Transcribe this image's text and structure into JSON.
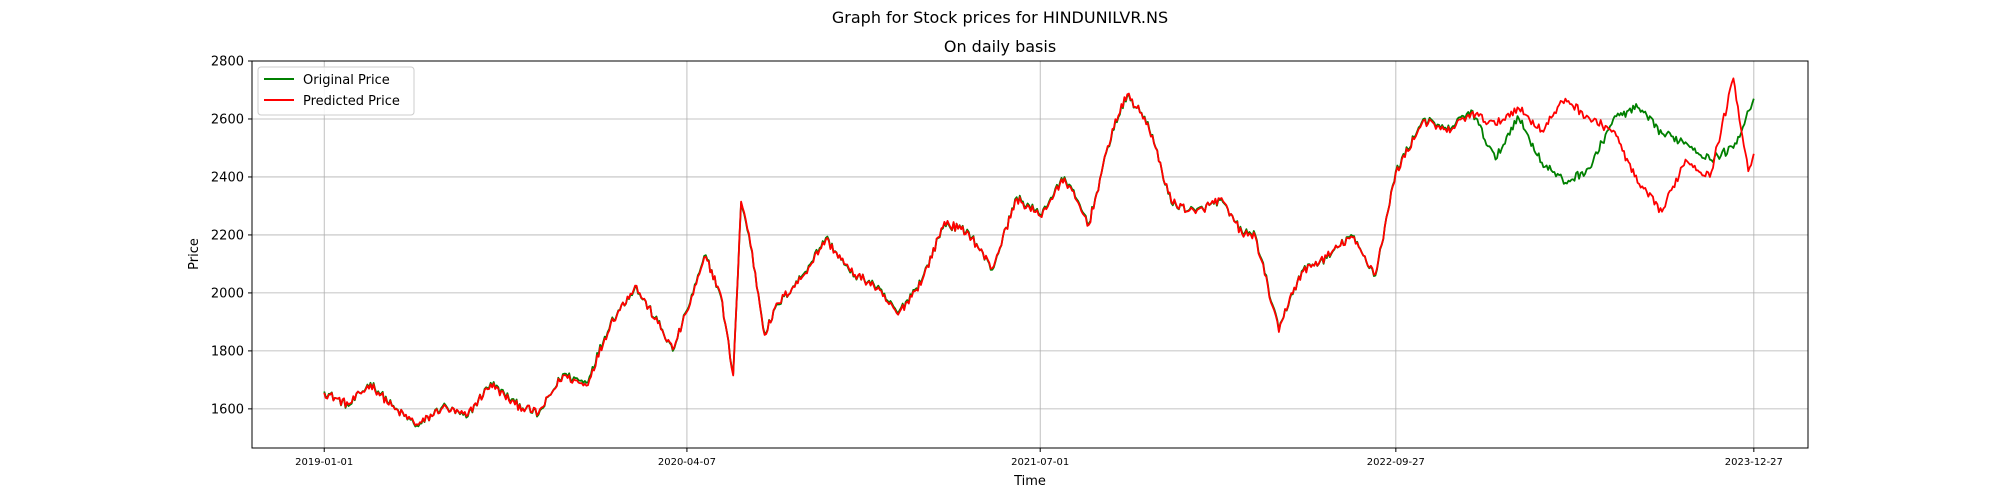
{
  "chart_data": {
    "type": "line",
    "suptitle": "Graph for Stock prices for HINDUNILVR.NS",
    "title": "On daily basis",
    "xlabel": "Time",
    "ylabel": "Price",
    "x_ticks": [
      "2019-01-01",
      "2020-04-07",
      "2021-07-01",
      "2022-09-27",
      "2023-12-27"
    ],
    "x_range": [
      "2018-10-01",
      "2024-03-05"
    ],
    "ylim": [
      1465,
      2800
    ],
    "y_ticks": [
      1600,
      1800,
      2000,
      2200,
      2400,
      2600,
      2800
    ],
    "grid": true,
    "legend_position": "upper left",
    "series": [
      {
        "name": "Original Price",
        "color": "#008000",
        "points": [
          [
            "2019-01-01",
            1660
          ],
          [
            "2019-02-01",
            1610
          ],
          [
            "2019-03-01",
            1690
          ],
          [
            "2019-04-01",
            1600
          ],
          [
            "2019-05-01",
            1540
          ],
          [
            "2019-06-01",
            1610
          ],
          [
            "2019-07-01",
            1570
          ],
          [
            "2019-08-01",
            1690
          ],
          [
            "2019-09-01",
            1620
          ],
          [
            "2019-10-01",
            1580
          ],
          [
            "2019-11-01",
            1720
          ],
          [
            "2019-12-01",
            1690
          ],
          [
            "2020-01-01",
            1900
          ],
          [
            "2020-02-01",
            2020
          ],
          [
            "2020-03-01",
            1900
          ],
          [
            "2020-03-20",
            1800
          ],
          [
            "2020-04-07",
            1940
          ],
          [
            "2020-05-01",
            2130
          ],
          [
            "2020-05-20",
            1990
          ],
          [
            "2020-06-05",
            1720
          ],
          [
            "2020-06-15",
            2310
          ],
          [
            "2020-06-25",
            2200
          ],
          [
            "2020-07-15",
            1860
          ],
          [
            "2020-08-01",
            1960
          ],
          [
            "2020-09-01",
            2060
          ],
          [
            "2020-10-01",
            2190
          ],
          [
            "2020-11-01",
            2070
          ],
          [
            "2020-12-01",
            2030
          ],
          [
            "2021-01-01",
            1930
          ],
          [
            "2021-02-01",
            2050
          ],
          [
            "2021-03-01",
            2240
          ],
          [
            "2021-04-01",
            2210
          ],
          [
            "2021-05-01",
            2080
          ],
          [
            "2021-06-01",
            2330
          ],
          [
            "2021-07-01",
            2270
          ],
          [
            "2021-08-01",
            2400
          ],
          [
            "2021-09-01",
            2240
          ],
          [
            "2021-10-01",
            2560
          ],
          [
            "2021-10-20",
            2680
          ],
          [
            "2021-11-15",
            2590
          ],
          [
            "2021-12-15",
            2310
          ],
          [
            "2022-01-15",
            2280
          ],
          [
            "2022-02-15",
            2320
          ],
          [
            "2022-03-15",
            2210
          ],
          [
            "2022-04-01",
            2200
          ],
          [
            "2022-05-01",
            1870
          ],
          [
            "2022-05-15",
            1980
          ],
          [
            "2022-06-01",
            2080
          ],
          [
            "2022-07-01",
            2120
          ],
          [
            "2022-08-01",
            2200
          ],
          [
            "2022-09-01",
            2060
          ],
          [
            "2022-09-27",
            2420
          ],
          [
            "2022-11-01",
            2600
          ],
          [
            "2022-12-01",
            2560
          ],
          [
            "2023-01-01",
            2630
          ],
          [
            "2023-02-01",
            2460
          ],
          [
            "2023-03-01",
            2610
          ],
          [
            "2023-04-01",
            2450
          ],
          [
            "2023-05-01",
            2380
          ],
          [
            "2023-06-01",
            2430
          ],
          [
            "2023-07-01",
            2600
          ],
          [
            "2023-08-01",
            2640
          ],
          [
            "2023-09-01",
            2550
          ],
          [
            "2023-10-01",
            2520
          ],
          [
            "2023-11-01",
            2460
          ],
          [
            "2023-12-01",
            2500
          ],
          [
            "2023-12-27",
            2670
          ]
        ]
      },
      {
        "name": "Predicted Price",
        "color": "#ff0000",
        "points": [
          [
            "2019-01-01",
            1655
          ],
          [
            "2019-02-01",
            1615
          ],
          [
            "2019-03-01",
            1685
          ],
          [
            "2019-04-01",
            1598
          ],
          [
            "2019-05-01",
            1545
          ],
          [
            "2019-06-01",
            1605
          ],
          [
            "2019-07-01",
            1575
          ],
          [
            "2019-08-01",
            1685
          ],
          [
            "2019-09-01",
            1615
          ],
          [
            "2019-10-01",
            1585
          ],
          [
            "2019-11-01",
            1715
          ],
          [
            "2019-12-01",
            1680
          ],
          [
            "2020-01-01",
            1895
          ],
          [
            "2020-02-01",
            2025
          ],
          [
            "2020-03-01",
            1895
          ],
          [
            "2020-03-20",
            1805
          ],
          [
            "2020-04-07",
            1935
          ],
          [
            "2020-05-01",
            2125
          ],
          [
            "2020-05-20",
            1995
          ],
          [
            "2020-06-05",
            1715
          ],
          [
            "2020-06-15",
            2315
          ],
          [
            "2020-06-25",
            2205
          ],
          [
            "2020-07-15",
            1855
          ],
          [
            "2020-08-01",
            1965
          ],
          [
            "2020-09-01",
            2055
          ],
          [
            "2020-10-01",
            2185
          ],
          [
            "2020-11-01",
            2075
          ],
          [
            "2020-12-01",
            2025
          ],
          [
            "2021-01-01",
            1925
          ],
          [
            "2021-02-01",
            2045
          ],
          [
            "2021-03-01",
            2245
          ],
          [
            "2021-04-01",
            2205
          ],
          [
            "2021-05-01",
            2085
          ],
          [
            "2021-06-01",
            2325
          ],
          [
            "2021-07-01",
            2265
          ],
          [
            "2021-08-01",
            2395
          ],
          [
            "2021-09-01",
            2235
          ],
          [
            "2021-10-01",
            2565
          ],
          [
            "2021-10-20",
            2685
          ],
          [
            "2021-11-15",
            2585
          ],
          [
            "2021-12-15",
            2315
          ],
          [
            "2022-01-15",
            2275
          ],
          [
            "2022-02-15",
            2325
          ],
          [
            "2022-03-15",
            2205
          ],
          [
            "2022-04-01",
            2195
          ],
          [
            "2022-05-01",
            1865
          ],
          [
            "2022-05-15",
            1985
          ],
          [
            "2022-06-01",
            2075
          ],
          [
            "2022-07-01",
            2125
          ],
          [
            "2022-08-01",
            2195
          ],
          [
            "2022-09-01",
            2065
          ],
          [
            "2022-09-27",
            2415
          ],
          [
            "2022-11-01",
            2595
          ],
          [
            "2022-12-01",
            2555
          ],
          [
            "2023-01-01",
            2620
          ],
          [
            "2023-02-01",
            2580
          ],
          [
            "2023-03-01",
            2640
          ],
          [
            "2023-04-01",
            2560
          ],
          [
            "2023-05-01",
            2670
          ],
          [
            "2023-06-01",
            2600
          ],
          [
            "2023-07-01",
            2560
          ],
          [
            "2023-08-01",
            2380
          ],
          [
            "2023-09-01",
            2280
          ],
          [
            "2023-10-01",
            2460
          ],
          [
            "2023-11-01",
            2400
          ],
          [
            "2023-12-01",
            2740
          ],
          [
            "2023-12-20",
            2420
          ],
          [
            "2023-12-27",
            2480
          ]
        ]
      }
    ]
  }
}
